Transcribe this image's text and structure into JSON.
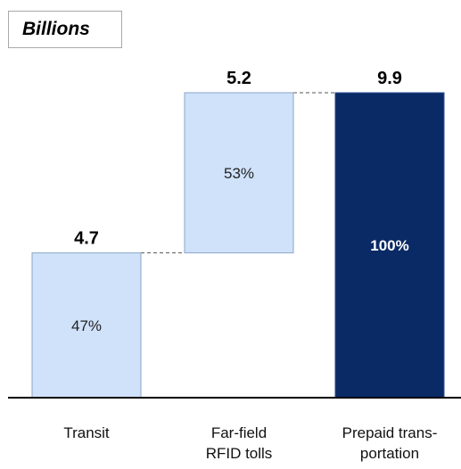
{
  "unit_label": "Billions",
  "colors": {
    "light_fill": "#cfe2fa",
    "light_stroke": "#8aa6c9",
    "dark_fill": "#0a2a66",
    "dark_stroke": "#2a4f95",
    "axis": "#000000",
    "connector": "#555555"
  },
  "chart_data": {
    "type": "bar",
    "subtype": "waterfall",
    "title": "",
    "ylabel": "Billions",
    "categories": [
      "Transit",
      "Far-field RFID tolls",
      "Prepaid trans-portation"
    ],
    "category_lines": [
      [
        "Transit"
      ],
      [
        "Far-field",
        "RFID tolls"
      ],
      [
        "Prepaid trans-",
        "portation"
      ]
    ],
    "values": [
      4.7,
      5.2,
      9.9
    ],
    "value_labels": [
      "4.7",
      "5.2",
      "9.9"
    ],
    "share_labels": [
      "47%",
      "53%",
      "100%"
    ],
    "bar_roles": [
      "increment",
      "increment",
      "total"
    ],
    "ylim": [
      0,
      9.9
    ],
    "grid": false,
    "legend": "none"
  }
}
